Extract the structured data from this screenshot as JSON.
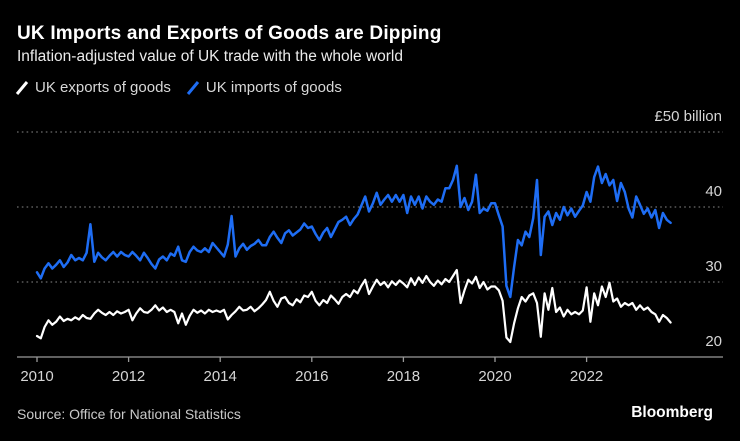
{
  "header": {
    "title": "UK Imports and Exports of Goods are Dipping",
    "subtitle": "Inflation-adjusted value of UK trade with the whole world"
  },
  "legend": [
    {
      "label": "UK exports of goods",
      "color": "#ffffff"
    },
    {
      "label": "UK imports of goods",
      "color": "#1e6df4"
    }
  ],
  "footer": {
    "source": "Source: Office for National Statistics",
    "brand": "Bloomberg"
  },
  "colors": {
    "background": "#000000",
    "grid_dotted": "#6e6e6e",
    "axis": "#999999",
    "tick_label": "#d5d5d5",
    "exports_line": "#ffffff",
    "imports_line": "#1e6df4"
  },
  "chart_data": {
    "type": "line",
    "title": "UK Imports and Exports of Goods are Dipping",
    "subtitle": "Inflation-adjusted value of UK trade with the whole world",
    "unit": "£ billion per month",
    "frequency": "monthly",
    "x_start_year": 2010,
    "x_end_year_fraction": 2023.92,
    "x_ticks": [
      2010,
      2012,
      2014,
      2016,
      2018,
      2020,
      2022
    ],
    "y_ticks": [
      {
        "value": 50,
        "label": "£50 billion"
      },
      {
        "value": 40,
        "label": "40"
      },
      {
        "value": 30,
        "label": "30"
      },
      {
        "value": 20,
        "label": "20"
      }
    ],
    "ylim": [
      20,
      52.5
    ],
    "grid": "dotted-horizontal",
    "legend_position": "top-left",
    "series": [
      {
        "name": "UK exports of goods",
        "color": "#ffffff",
        "values": [
          22.8,
          22.5,
          24.0,
          24.9,
          24.3,
          24.7,
          25.4,
          24.8,
          25.1,
          24.9,
          25.3,
          25.0,
          25.6,
          25.2,
          25.1,
          25.8,
          26.3,
          25.9,
          25.6,
          26.0,
          25.6,
          26.1,
          25.8,
          26.0,
          26.3,
          24.9,
          25.8,
          26.5,
          26.0,
          25.9,
          26.3,
          26.9,
          26.2,
          26.6,
          26.0,
          26.3,
          26.0,
          24.5,
          25.8,
          24.3,
          25.5,
          26.3,
          25.9,
          26.2,
          25.8,
          26.3,
          26.0,
          26.2,
          26.0,
          26.3,
          25.0,
          25.6,
          26.1,
          26.7,
          26.2,
          26.3,
          26.7,
          26.1,
          26.5,
          27.0,
          27.6,
          28.7,
          27.5,
          26.7,
          27.8,
          28.0,
          27.2,
          26.9,
          27.7,
          27.3,
          28.2,
          28.0,
          28.7,
          27.5,
          26.9,
          27.6,
          27.2,
          28.2,
          27.7,
          27.1,
          28.0,
          28.4,
          28.0,
          28.9,
          28.5,
          29.5,
          30.3,
          28.4,
          29.4,
          30.3,
          29.6,
          30.0,
          29.3,
          30.1,
          29.6,
          30.2,
          29.8,
          29.3,
          30.5,
          29.6,
          30.6,
          29.9,
          30.8,
          30.0,
          29.5,
          30.2,
          29.7,
          30.4,
          30.0,
          30.8,
          31.6,
          27.2,
          28.9,
          30.3,
          29.8,
          30.7,
          29.2,
          30.0,
          29.0,
          29.4,
          29.4,
          28.9,
          27.5,
          22.6,
          22.0,
          24.5,
          26.5,
          28.0,
          27.4,
          28.2,
          28.5,
          27.2,
          22.7,
          28.5,
          26.3,
          29.2,
          26.0,
          26.6,
          25.4,
          26.3,
          25.7,
          26.0,
          25.7,
          26.2,
          29.3,
          24.7,
          28.5,
          26.9,
          29.4,
          28.0,
          29.9,
          27.4,
          27.8,
          26.7,
          27.2,
          26.9,
          27.2,
          26.3,
          26.9,
          26.3,
          26.6,
          26.0,
          25.7,
          24.7,
          25.6,
          25.2,
          24.6
        ]
      },
      {
        "name": "UK imports of goods",
        "color": "#1e6df4",
        "values": [
          31.3,
          30.5,
          31.8,
          32.5,
          31.8,
          32.3,
          32.9,
          32.0,
          32.6,
          33.6,
          32.9,
          33.2,
          32.9,
          33.9,
          37.7,
          32.7,
          33.9,
          33.3,
          32.9,
          33.5,
          34.0,
          33.4,
          34.0,
          33.6,
          33.4,
          34.0,
          33.5,
          32.9,
          33.9,
          33.2,
          32.4,
          31.8,
          33.0,
          33.4,
          32.9,
          33.8,
          33.5,
          34.7,
          32.9,
          32.7,
          34.0,
          34.7,
          34.2,
          34.0,
          34.5,
          34.0,
          35.2,
          34.6,
          34.0,
          33.4,
          35.0,
          38.8,
          33.4,
          34.5,
          35.1,
          34.3,
          34.8,
          35.1,
          35.6,
          34.9,
          34.9,
          36.0,
          36.7,
          35.9,
          35.2,
          36.5,
          36.9,
          36.2,
          36.6,
          37.0,
          37.8,
          37.2,
          37.4,
          36.4,
          35.6,
          36.6,
          37.2,
          36.0,
          37.0,
          38.0,
          38.3,
          38.7,
          37.6,
          38.4,
          39.0,
          40.2,
          41.4,
          39.4,
          40.5,
          41.9,
          40.3,
          41.0,
          41.6,
          40.7,
          41.6,
          40.7,
          41.6,
          39.2,
          41.4,
          40.3,
          41.4,
          39.8,
          41.4,
          40.7,
          40.3,
          41.0,
          40.7,
          42.5,
          42.5,
          43.6,
          45.5,
          40.0,
          41.2,
          39.6,
          40.7,
          44.3,
          39.2,
          39.8,
          39.5,
          40.5,
          40.5,
          38.9,
          37.4,
          29.5,
          28.0,
          32.0,
          35.6,
          34.9,
          36.7,
          36.0,
          38.5,
          43.6,
          33.6,
          38.7,
          39.4,
          37.6,
          39.2,
          38.3,
          40.0,
          38.9,
          39.8,
          38.7,
          39.5,
          40.2,
          42.0,
          40.7,
          44.0,
          45.4,
          43.2,
          44.4,
          42.9,
          43.6,
          40.8,
          43.2,
          42.0,
          39.8,
          38.6,
          41.4,
          40.3,
          39.1,
          39.8,
          38.6,
          39.6,
          37.2,
          39.2,
          38.3,
          37.9
        ]
      }
    ]
  }
}
